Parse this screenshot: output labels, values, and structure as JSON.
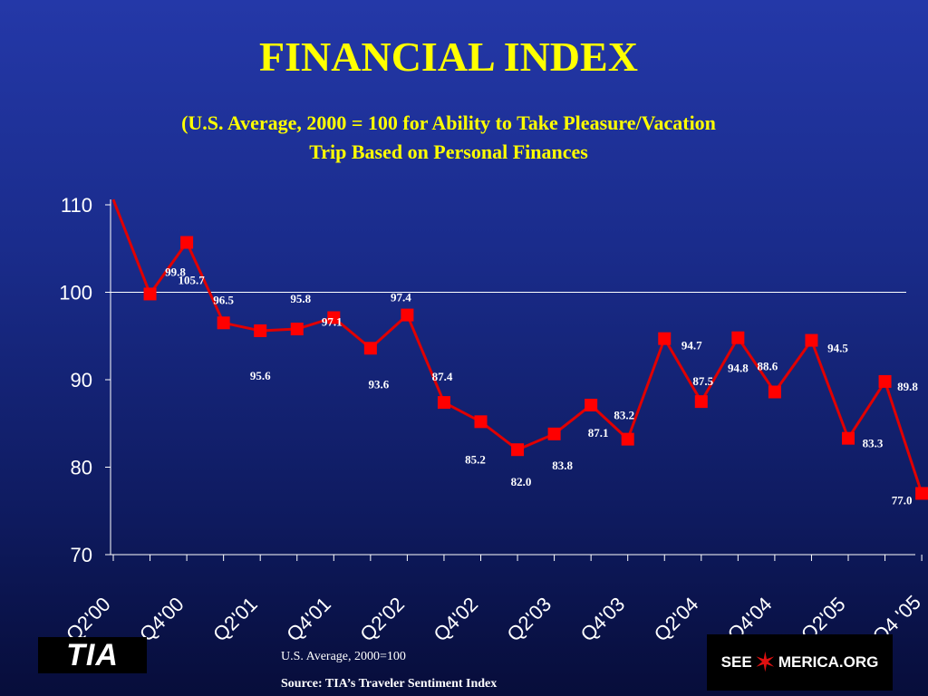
{
  "title": "FINANCIAL INDEX",
  "subtitle_line1": "(U.S. Average, 2000 = 100 for Ability to Take Pleasure/Vacation",
  "subtitle_line2": "Trip Based on Personal Finances",
  "footnote_average": "U.S. Average, 2000=100",
  "footnote_source": "Source:  TIA’s Traveler Sentiment Index",
  "logo_left": "TIA",
  "logo_right_pre": "SEE",
  "logo_right_post": "MERICA.ORG",
  "colors": {
    "title": "#ffff00",
    "line": "#e00000",
    "marker": "#ff0000",
    "axis": "#ffffff",
    "data_label": "#ffffff"
  },
  "chart_data": {
    "type": "line",
    "ylim": [
      70,
      110
    ],
    "yticks": [
      "70",
      "80",
      "90",
      "100",
      "110"
    ],
    "reference_line": 100,
    "x_labels": [
      "Q2'00",
      "Q4'00",
      "Q2'01",
      "Q4'01",
      "Q2'02",
      "Q4'02",
      "Q2'03",
      "Q4'03",
      "Q2'04",
      "Q4'04",
      "Q2'05",
      "Q4 '05"
    ],
    "series": [
      {
        "values": [
          110.6,
          99.8,
          105.7,
          96.5,
          95.6,
          95.8,
          97.1,
          93.6,
          97.4,
          87.4,
          85.2,
          82.0,
          83.8,
          87.1,
          83.2,
          94.7,
          87.5,
          94.8,
          88.6,
          94.5,
          83.3,
          89.8,
          77.0
        ],
        "labels": [
          null,
          "99.8",
          "105.7",
          "96.5",
          "95.6",
          "95.8",
          "97.1",
          "93.6",
          "97.4",
          "87.4",
          "85.2",
          "82.0",
          "83.8",
          "87.1",
          "83.2",
          "94.7",
          "87.5",
          "94.8",
          "88.6",
          "94.5",
          "83.3",
          "89.8",
          "77.0"
        ]
      }
    ]
  }
}
